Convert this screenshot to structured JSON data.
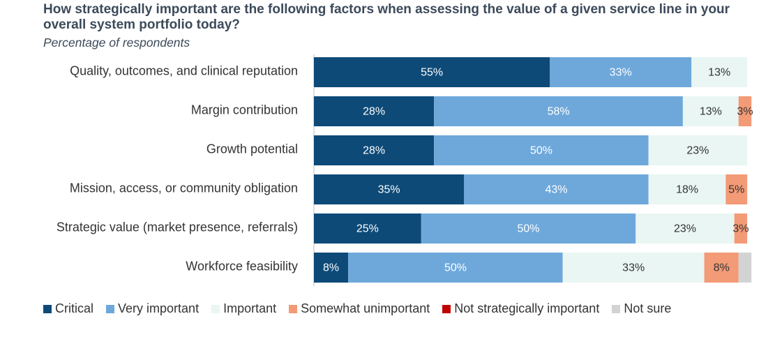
{
  "chart_data": {
    "type": "bar",
    "orientation": "horizontal",
    "stacked": true,
    "title": "How strategically important are the following factors when assessing the value of a given service line in your overall system portfolio today?",
    "subtitle": "Percentage of respondents",
    "categories": [
      "Quality, outcomes, and clinical reputation",
      "Margin contribution",
      "Growth potential",
      "Mission, access, or community obligation",
      "Strategic value (market presence, referrals)",
      "Workforce feasibility"
    ],
    "series": [
      {
        "name": "Critical",
        "color": "#0d4a78",
        "label_color": "#ffffff",
        "values": [
          55,
          28,
          28,
          35,
          25,
          8
        ],
        "labels": [
          "55%",
          "28%",
          "28%",
          "35%",
          "25%",
          "8%"
        ]
      },
      {
        "name": "Very important",
        "color": "#6ea8db",
        "label_color": "#ffffff",
        "values": [
          33,
          58,
          50,
          43,
          50,
          50
        ],
        "labels": [
          "33%",
          "58%",
          "50%",
          "43%",
          "50%",
          "50%"
        ]
      },
      {
        "name": "Important",
        "color": "#e9f6f3",
        "label_color": "#333333",
        "values": [
          13,
          13,
          23,
          18,
          23,
          33
        ],
        "labels": [
          "13%",
          "13%",
          "23%",
          "18%",
          "23%",
          "33%"
        ]
      },
      {
        "name": "Somewhat unimportant",
        "color": "#f39a76",
        "label_color": "#333333",
        "values": [
          0,
          3,
          0,
          5,
          3,
          8
        ],
        "labels": [
          "",
          "3%",
          "",
          "5%",
          "3%",
          "8%"
        ]
      },
      {
        "name": "Not strategically important",
        "color": "#c00000",
        "label_color": "#ffffff",
        "values": [
          0,
          0,
          0,
          0,
          0,
          0
        ],
        "labels": [
          "",
          "",
          "",
          "",
          "",
          ""
        ]
      },
      {
        "name": "Not sure",
        "color": "#d3d3d3",
        "label_color": "#333333",
        "values": [
          0,
          0,
          0,
          0,
          0,
          3
        ],
        "labels": [
          "",
          "",
          "",
          "",
          "",
          ""
        ]
      }
    ],
    "xlim": [
      0,
      100
    ],
    "grid": false,
    "legend_position": "bottom"
  }
}
